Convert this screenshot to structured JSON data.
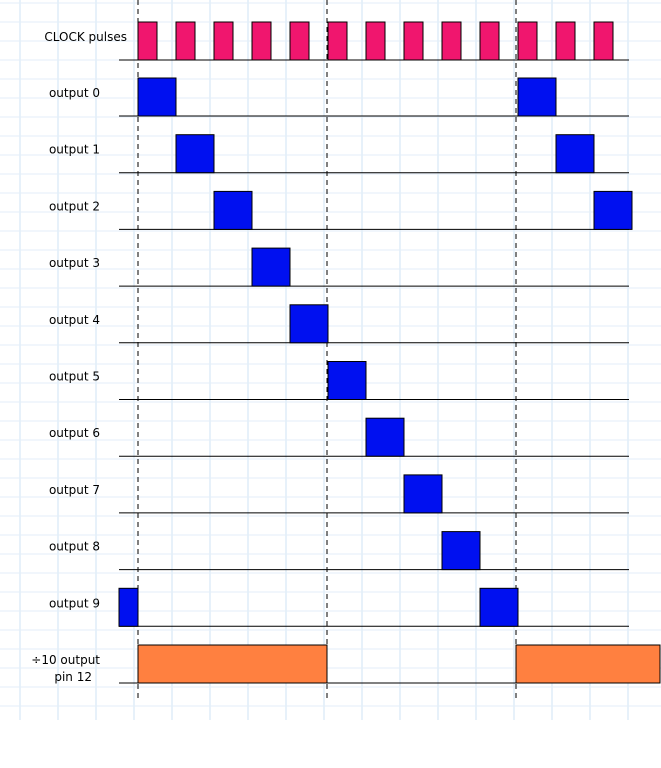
{
  "rows": [
    {
      "label": "CLOCK pulses"
    },
    {
      "label": "output 0"
    },
    {
      "label": "output 1"
    },
    {
      "label": "output 2"
    },
    {
      "label": "output 3"
    },
    {
      "label": "output 4"
    },
    {
      "label": "output 5"
    },
    {
      "label": "output 6"
    },
    {
      "label": "output 7"
    },
    {
      "label": "output 8"
    },
    {
      "label": "output 9"
    },
    {
      "label": "÷10 output",
      "label2": "pin 12"
    }
  ]
}
